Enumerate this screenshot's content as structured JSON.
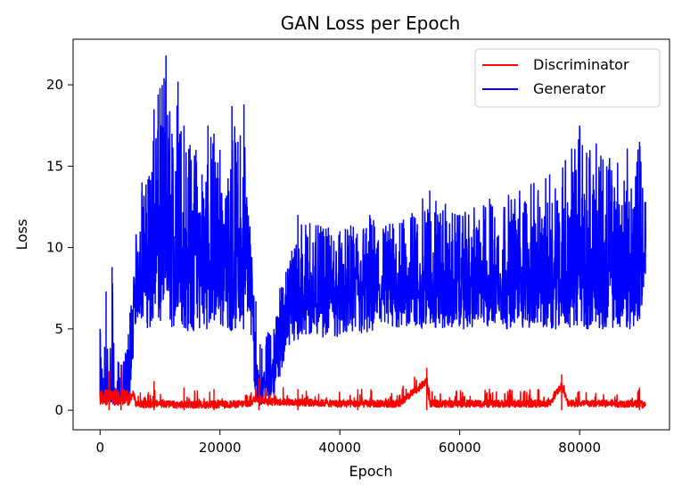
{
  "chart_data": {
    "type": "line",
    "title": "GAN Loss per Epoch",
    "xlabel": "Epoch",
    "ylabel": "Loss",
    "xlim": [
      -4500,
      95000
    ],
    "ylim": [
      -1.2,
      22.8
    ],
    "xticks": [
      0,
      20000,
      40000,
      60000,
      80000
    ],
    "yticks": [
      0,
      5,
      10,
      15,
      20
    ],
    "grid": false,
    "legend_position": "top-right",
    "series": [
      {
        "name": "Discriminator",
        "color": "#ff0000",
        "x": [
          0,
          1000,
          2000,
          3000,
          4000,
          4500,
          5000,
          5500,
          6000,
          8000,
          10000,
          12000,
          15000,
          20000,
          25000,
          26000,
          28000,
          30000,
          35000,
          40000,
          45000,
          50000,
          54500,
          55000,
          60000,
          65000,
          70000,
          75000,
          77000,
          78000,
          80000,
          85000,
          90000,
          91000
        ],
        "values": [
          0.8,
          2.4,
          1.2,
          2.6,
          2.8,
          1.0,
          0.6,
          1.5,
          0.3,
          0.2,
          0.3,
          0.2,
          0.2,
          0.2,
          0.3,
          0.9,
          0.5,
          0.5,
          0.4,
          0.3,
          0.3,
          0.3,
          2.6,
          0.3,
          0.3,
          0.3,
          0.3,
          0.3,
          2.2,
          0.4,
          0.3,
          0.3,
          0.3,
          0.1
        ],
        "peaks": [
          [
            1500,
            2.4
          ],
          [
            3500,
            2.8
          ],
          [
            9000,
            1.8
          ],
          [
            14000,
            1.4
          ],
          [
            19000,
            1.3
          ],
          [
            26500,
            2.0
          ],
          [
            33000,
            1.3
          ],
          [
            43000,
            1.3
          ],
          [
            54500,
            2.6
          ],
          [
            77000,
            2.2
          ],
          [
            90000,
            1.4
          ]
        ]
      },
      {
        "name": "Generator",
        "color": "#0000ff",
        "x": [
          0,
          500,
          1000,
          1500,
          2000,
          2500,
          3000,
          4000,
          5000,
          6000,
          7000,
          8000,
          9000,
          10000,
          11000,
          12000,
          13000,
          14000,
          15000,
          16000,
          17000,
          18000,
          19000,
          20000,
          21000,
          22000,
          23000,
          24000,
          25000,
          26000,
          27000,
          28000,
          29000,
          30000,
          31000,
          32000,
          33000,
          35000,
          40000,
          45000,
          50000,
          55000,
          60000,
          65000,
          70000,
          75000,
          80000,
          85000,
          90000,
          91000
        ],
        "low": [
          0.6,
          0.5,
          0.5,
          0.4,
          0.4,
          0.4,
          0.4,
          0.5,
          1.0,
          5.5,
          5.5,
          5.0,
          5.0,
          4.8,
          5.5,
          5.0,
          5.0,
          5.0,
          4.5,
          4.8,
          5.0,
          5.0,
          5.0,
          5.0,
          5.0,
          4.8,
          5.0,
          5.0,
          5.5,
          0.3,
          0.3,
          0.5,
          1.0,
          2.0,
          3.5,
          4.0,
          4.0,
          4.5,
          4.5,
          4.5,
          5.0,
          5.0,
          5.0,
          5.0,
          5.0,
          5.0,
          5.0,
          5.0,
          5.0,
          8.0
        ],
        "high": [
          5.0,
          2.0,
          7.3,
          1.5,
          8.8,
          1.2,
          3.0,
          3.0,
          6.0,
          10.8,
          14.0,
          14.2,
          18.5,
          19.8,
          21.8,
          17.0,
          20.2,
          17.5,
          16.3,
          16.0,
          14.5,
          17.5,
          17.0,
          16.0,
          13.0,
          18.7,
          16.5,
          18.8,
          11.3,
          6.7,
          3.8,
          4.8,
          5.0,
          7.5,
          8.5,
          9.8,
          12.0,
          11.5,
          11.0,
          12.0,
          11.5,
          13.5,
          12.0,
          13.0,
          13.5,
          14.5,
          17.5,
          15.5,
          16.5,
          12.8
        ],
        "mean": [
          0.8,
          0.8,
          0.9,
          0.8,
          0.9,
          0.8,
          0.8,
          1.0,
          2.0,
          8.0,
          9.5,
          9.5,
          10.0,
          10.5,
          11.0,
          10.0,
          10.0,
          9.5,
          9.5,
          9.5,
          9.0,
          9.5,
          9.5,
          9.5,
          9.0,
          9.5,
          9.5,
          9.5,
          8.5,
          2.0,
          1.5,
          2.0,
          2.5,
          5.0,
          6.5,
          7.0,
          7.0,
          7.0,
          7.5,
          7.5,
          7.5,
          7.5,
          8.0,
          8.0,
          8.0,
          8.5,
          8.5,
          8.5,
          8.5,
          10.0
        ]
      }
    ]
  }
}
